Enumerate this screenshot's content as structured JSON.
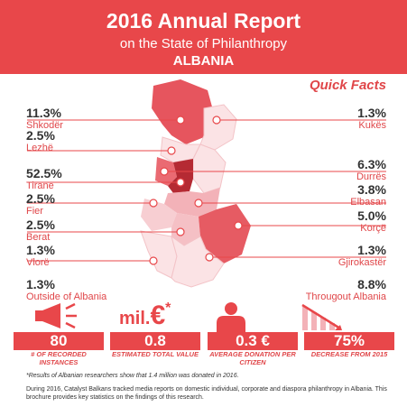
{
  "header": {
    "title": "2016 Annual Report",
    "subtitle": "on the State of Philanthropy",
    "country": "ALBANIA"
  },
  "quick_facts_label": "Quick Facts",
  "left_stats": [
    {
      "pct": "11.3%",
      "name": "Shkodër"
    },
    {
      "pct": "2.5%",
      "name": "Lezhë"
    },
    {
      "pct": "52.5%",
      "name": "Tiranë"
    },
    {
      "pct": "2.5%",
      "name": "Fier"
    },
    {
      "pct": "2.5%",
      "name": "Berat"
    },
    {
      "pct": "1.3%",
      "name": "Vlorë"
    },
    {
      "pct": "1.3%",
      "name": "Outside of Albania"
    }
  ],
  "right_stats": [
    {
      "pct": "1.3%",
      "name": "Kukës"
    },
    {
      "pct": "6.3%",
      "name": "Durrës"
    },
    {
      "pct": "3.8%",
      "name": "Elbasan"
    },
    {
      "pct": "5.0%",
      "name": "Korçë"
    },
    {
      "pct": "1.3%",
      "name": "Gjirokastër"
    },
    {
      "pct": "8.8%",
      "name": "Througout Albania"
    }
  ],
  "icons": {
    "mil_text": "mil.",
    "euro": "€",
    "asterisk": "*"
  },
  "tiles": [
    {
      "value": "80",
      "caption": "# OF RECORDED INSTANCES"
    },
    {
      "value": "0.8",
      "caption": "ESTIMATED TOTAL VALUE"
    },
    {
      "value": "0.3 €",
      "caption": "AVERAGE DONATION PER CITIZEN"
    },
    {
      "value": "75%",
      "caption": "DECREASE FROM 2015"
    }
  ],
  "note": "*Results of Albanian researchers show that 1.4 million was donated in 2016.",
  "footer": "During 2016, Catalyst Balkans tracked media reports on domestic individual, corporate and diaspora philanthropy in Albania. This brochure provides key statistics on the findings of this research.",
  "colors": {
    "accent": "#e8474a",
    "region_dark": "#c0333a",
    "region_mid": "#ea6a72",
    "region_light": "#f3b2b8",
    "region_pale": "#fbe3e5"
  }
}
